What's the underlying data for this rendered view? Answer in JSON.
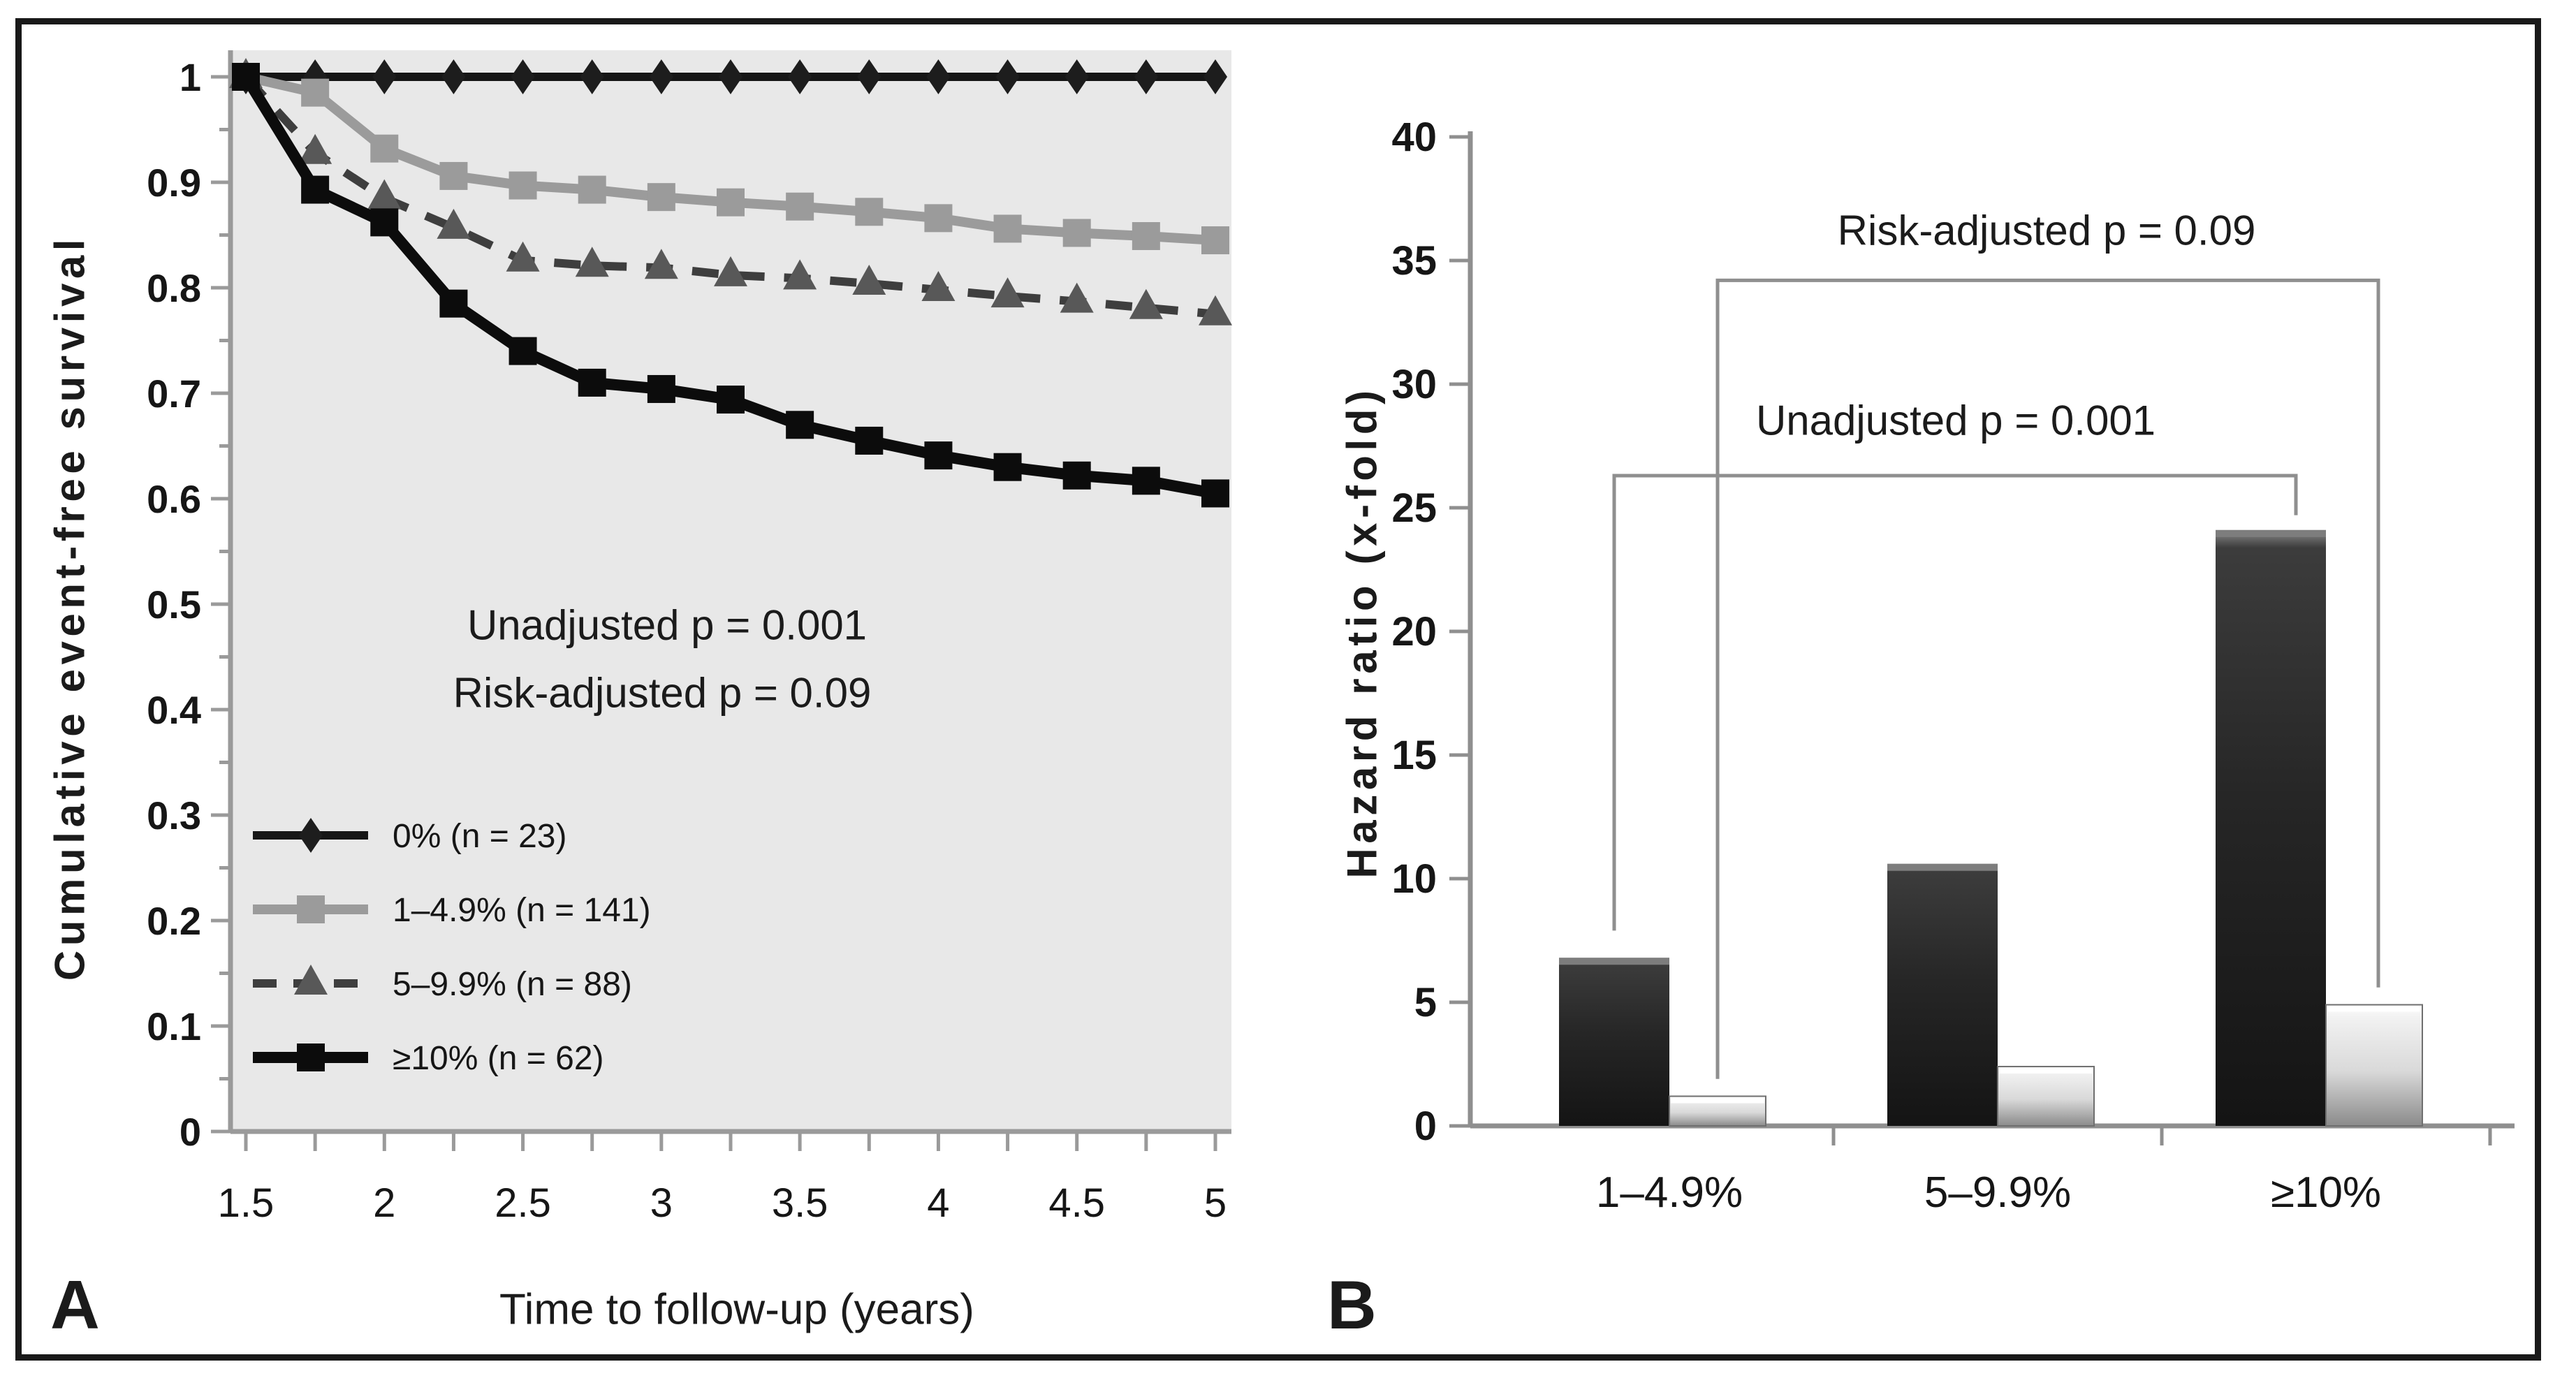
{
  "figure": {
    "panel_a_label": "A",
    "panel_b_label": "B",
    "frame_color": "#191919",
    "background": "#ffffff"
  },
  "chart_data": [
    {
      "id": "panel-a",
      "type": "line",
      "xlabel": "Time to follow-up (years)",
      "ylabel": "Cumulative event-free survival",
      "xlim": [
        1.5,
        5
      ],
      "ylim": [
        0,
        1
      ],
      "x_step": 0.25,
      "x_tick_values": [
        1.5,
        1.75,
        2,
        2.25,
        2.5,
        2.75,
        3,
        3.25,
        3.5,
        3.75,
        4,
        4.25,
        4.5,
        4.75,
        5
      ],
      "x_tick_labels": [
        "1.5",
        "2",
        "2.5",
        "3",
        "3.5",
        "4",
        "4.5",
        "5"
      ],
      "y_tick_labels": [
        "0",
        "0.1",
        "0.2",
        "0.3",
        "0.4",
        "0.5",
        "0.6",
        "0.7",
        "0.8",
        "0.9",
        "1"
      ],
      "plot_bg": "#e8e8e8",
      "axis_color": "#9a9a9a",
      "grid": false,
      "legend_position": "lower-left",
      "annotations": [
        "Unadjusted p = 0.001",
        "Risk-adjusted p = 0.09"
      ],
      "x": [
        1.5,
        1.75,
        2,
        2.25,
        2.5,
        2.75,
        3,
        3.25,
        3.5,
        3.75,
        4,
        4.25,
        4.5,
        4.75,
        5
      ],
      "series": [
        {
          "name": "0% (n = 23)",
          "marker": "diamond",
          "dashed": false,
          "color": "#161616",
          "marker_color": "#1d1d1d",
          "line_width": 12,
          "values": [
            1,
            1,
            1,
            1,
            1,
            1,
            1,
            1,
            1,
            1,
            1,
            1,
            1,
            1,
            1
          ]
        },
        {
          "name": "1–4.9% (n = 141)",
          "marker": "square",
          "dashed": false,
          "color": "#9b9b9b",
          "marker_color": "#9b9b9b",
          "line_width": 14,
          "values": [
            1.0,
            0.985,
            0.932,
            0.906,
            0.897,
            0.893,
            0.886,
            0.881,
            0.877,
            0.872,
            0.866,
            0.856,
            0.852,
            0.849,
            0.845
          ]
        },
        {
          "name": "5–9.9% (n = 88)",
          "marker": "triangle",
          "dashed": true,
          "color": "#3e3e3e",
          "marker_color": "#585858",
          "line_width": 12,
          "values": [
            1.0,
            0.928,
            0.885,
            0.857,
            0.826,
            0.821,
            0.819,
            0.812,
            0.809,
            0.804,
            0.798,
            0.792,
            0.787,
            0.781,
            0.775
          ]
        },
        {
          "name": "≥10% (n = 62)",
          "marker": "square",
          "dashed": false,
          "color": "#0c0c0c",
          "marker_color": "#0c0c0c",
          "line_width": 16,
          "values": [
            1.0,
            0.893,
            0.862,
            0.785,
            0.74,
            0.71,
            0.704,
            0.694,
            0.67,
            0.655,
            0.641,
            0.63,
            0.622,
            0.617,
            0.605
          ]
        }
      ]
    },
    {
      "id": "panel-b",
      "type": "bar",
      "ylabel": "Hazard ratio (x-fold)",
      "categories": [
        "1–4.9%",
        "5–9.9%",
        "≥10%"
      ],
      "ylim": [
        0,
        40
      ],
      "y_ticks": [
        0,
        5,
        10,
        15,
        20,
        25,
        30,
        35,
        40
      ],
      "axis_color": "#8f8f8f",
      "grid": false,
      "series": [
        {
          "name": "Unadjusted",
          "fill": "dark",
          "values": [
            6.8,
            10.6,
            24.1
          ]
        },
        {
          "name": "Risk-adjusted",
          "fill": "light",
          "values": [
            1.2,
            2.4,
            4.9
          ]
        }
      ],
      "brackets": [
        {
          "label": "Unadjusted p = 0.001",
          "level": 26.3,
          "targets": "dark",
          "leg_ends": [
            7.9,
            24.7
          ]
        },
        {
          "label": "Risk-adjusted p = 0.09",
          "level": 34.2,
          "targets": "light",
          "leg_ends": [
            1.9,
            5.6
          ]
        }
      ],
      "bar_colors": {
        "dark_top": "#8a8a8a",
        "dark_body": "#262626",
        "dark_bottom": "#141414",
        "light_top": "#ffffff",
        "light_body": "#d9d9d9",
        "light_bottom": "#8b8b8b",
        "bracket": "#8f8f8f"
      }
    }
  ]
}
